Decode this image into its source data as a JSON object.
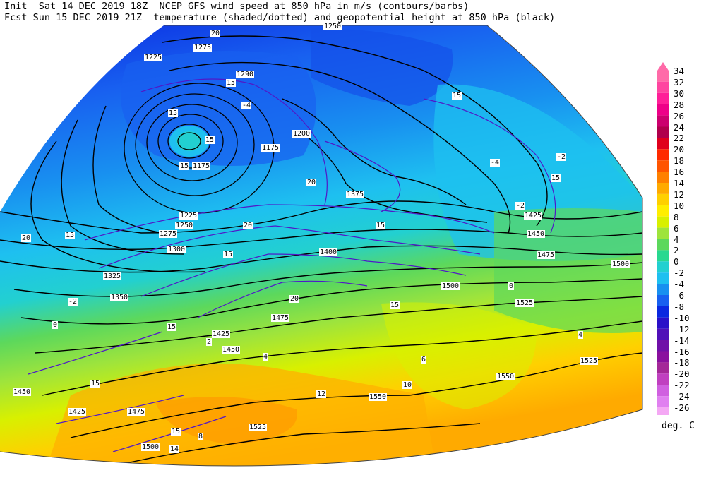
{
  "header": {
    "line1": "Init  Sat 14 DEC 2019 18Z  NCEP GFS wind speed at 850 hPa in m/s (contours/barbs)",
    "line2": "Fcst Sun 15 DEC 2019 21Z  temperature (shaded/dotted) and geopotential height at 850 hPa (black)"
  },
  "legend": {
    "units": "deg. C",
    "levels": [
      "34",
      "32",
      "30",
      "28",
      "26",
      "24",
      "22",
      "20",
      "18",
      "16",
      "14",
      "12",
      "10",
      "8",
      "6",
      "4",
      "2",
      "0",
      "-2",
      "-4",
      "-6",
      "-8",
      "-10",
      "-12",
      "-14",
      "-16",
      "-18",
      "-20",
      "-22",
      "-24",
      "-26"
    ],
    "colors": [
      "#ff6aa8",
      "#ff45a0",
      "#ff1f98",
      "#ee0088",
      "#cc006e",
      "#b0004c",
      "#e0001c",
      "#ff2a00",
      "#ff5500",
      "#ff8000",
      "#ffaa00",
      "#ffd000",
      "#ffee00",
      "#d8f000",
      "#9ee43c",
      "#5cd85c",
      "#28d890",
      "#22d0d0",
      "#1ec0f0",
      "#1890f0",
      "#1860f0",
      "#0a28e0",
      "#2a10c8",
      "#5010b8",
      "#7010a8",
      "#8a109e",
      "#a42898",
      "#c040c0",
      "#d060e0",
      "#e080f0",
      "#f4a8f4"
    ]
  },
  "height_labels": [
    {
      "text": "1250"
    },
    {
      "text": "1275"
    },
    {
      "text": "1225"
    },
    {
      "text": "1290"
    },
    {
      "text": "1175"
    },
    {
      "text": "1200"
    },
    {
      "text": "1175"
    },
    {
      "text": "1225"
    },
    {
      "text": "1250"
    },
    {
      "text": "1275"
    },
    {
      "text": "1300"
    },
    {
      "text": "1325"
    },
    {
      "text": "1350"
    },
    {
      "text": "1375"
    },
    {
      "text": "1400"
    },
    {
      "text": "1425"
    },
    {
      "text": "1450"
    },
    {
      "text": "1475"
    },
    {
      "text": "1500"
    },
    {
      "text": "1525"
    },
    {
      "text": "1550"
    },
    {
      "text": "1425"
    },
    {
      "text": "1450"
    },
    {
      "text": "1475"
    },
    {
      "text": "1500"
    },
    {
      "text": "1525"
    },
    {
      "text": "1550"
    },
    {
      "text": "1475"
    },
    {
      "text": "1500"
    },
    {
      "text": "1450"
    },
    {
      "text": "1425"
    },
    {
      "text": "1525"
    }
  ],
  "wind_labels": [
    {
      "text": "20"
    },
    {
      "text": "15"
    },
    {
      "text": "15"
    },
    {
      "text": "15"
    },
    {
      "text": "15"
    },
    {
      "text": "20"
    },
    {
      "text": "15"
    },
    {
      "text": "20"
    },
    {
      "text": "15"
    },
    {
      "text": "15"
    },
    {
      "text": "20"
    },
    {
      "text": "15"
    },
    {
      "text": "15"
    },
    {
      "text": "15"
    },
    {
      "text": "15"
    },
    {
      "text": "15"
    },
    {
      "text": "20"
    },
    {
      "text": "15"
    }
  ],
  "temp_labels": [
    {
      "text": "-4"
    },
    {
      "text": "-2"
    },
    {
      "text": "-4"
    },
    {
      "text": "-2"
    },
    {
      "text": "0"
    },
    {
      "text": "2"
    },
    {
      "text": "4"
    },
    {
      "text": "8"
    },
    {
      "text": "12"
    },
    {
      "text": "10"
    },
    {
      "text": "6"
    },
    {
      "text": "4"
    },
    {
      "text": "-2"
    },
    {
      "text": "0"
    },
    {
      "text": "14"
    }
  ]
}
